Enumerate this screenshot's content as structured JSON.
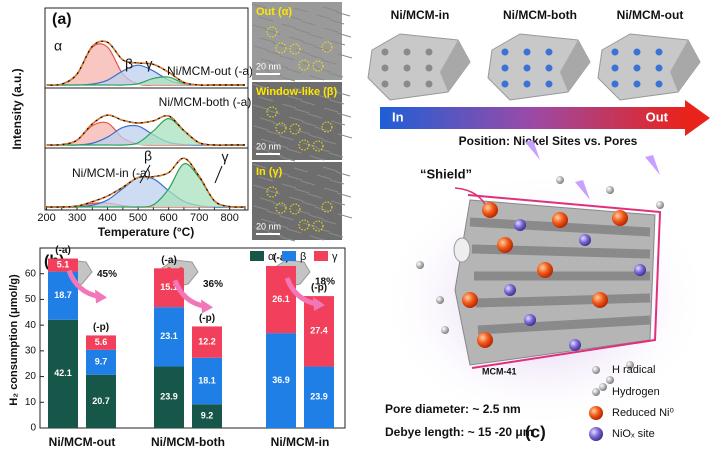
{
  "panel_a": {
    "label": "(a)",
    "type": "line",
    "x_label": "Temperature (°C)",
    "y_label": "Intensity (a.u.)",
    "xlim": [
      195,
      860
    ],
    "xticks": [
      200,
      250,
      300,
      350,
      400,
      450,
      500,
      550,
      600,
      650,
      700,
      750,
      800,
      850
    ],
    "ylim": [
      0,
      1.25
    ],
    "x": [
      200,
      250,
      300,
      350,
      400,
      450,
      500,
      550,
      600,
      650,
      700,
      750,
      800,
      850
    ],
    "traces": [
      {
        "label": "Ni/MCM-out (-a)",
        "annotations": [
          "α",
          "β",
          "γ"
        ],
        "total": [
          0,
          0.02,
          0.25,
          0.88,
          0.97,
          0.57,
          0.5,
          0.47,
          0.29,
          0.06,
          0,
          0,
          0,
          0
        ],
        "components": [
          {
            "color": "#e8534a",
            "values": [
              0,
              0.02,
              0.25,
              0.86,
              0.86,
              0.25,
              0.02,
              0,
              0,
              0,
              0,
              0,
              0,
              0
            ]
          },
          {
            "color": "#3b6fc9",
            "values": [
              0,
              0,
              0,
              0.02,
              0.11,
              0.32,
              0.45,
              0.32,
              0.11,
              0.02,
              0,
              0,
              0,
              0
            ]
          },
          {
            "color": "#2ba35c",
            "values": [
              0,
              0,
              0,
              0,
              0,
              0,
              0.03,
              0.15,
              0.18,
              0.04,
              0,
              0,
              0,
              0
            ]
          }
        ]
      },
      {
        "label": "Ni/MCM-both (-a)",
        "annotations": [],
        "total": [
          0,
          0.01,
          0.11,
          0.48,
          0.68,
          0.56,
          0.5,
          0.55,
          0.66,
          0.33,
          0.05,
          0,
          0,
          0
        ],
        "components": [
          {
            "color": "#e8534a",
            "values": [
              0,
              0.01,
              0.11,
              0.44,
              0.5,
              0.16,
              0.02,
              0,
              0,
              0,
              0,
              0,
              0,
              0
            ]
          },
          {
            "color": "#3b6fc9",
            "values": [
              0,
              0,
              0,
              0.04,
              0.18,
              0.4,
              0.43,
              0.23,
              0.06,
              0.01,
              0,
              0,
              0,
              0
            ]
          },
          {
            "color": "#2ba35c",
            "values": [
              0,
              0,
              0,
              0,
              0,
              0,
              0.05,
              0.32,
              0.6,
              0.32,
              0.05,
              0,
              0,
              0
            ]
          }
        ]
      },
      {
        "label": "Ni/MCM-in (-a)",
        "annotations": [
          "β",
          "γ"
        ],
        "total": [
          0,
          0,
          0.02,
          0.12,
          0.25,
          0.45,
          0.67,
          0.69,
          0.78,
          1.11,
          0.7,
          0.14,
          0.01,
          0
        ],
        "components": [
          {
            "color": "#e8534a",
            "values": [
              0,
              0,
              0.02,
              0.08,
              0.09,
              0.03,
              0,
              0,
              0,
              0,
              0,
              0,
              0,
              0
            ]
          },
          {
            "color": "#3b6fc9",
            "values": [
              0,
              0,
              0,
              0.04,
              0.16,
              0.42,
              0.67,
              0.64,
              0.37,
              0.13,
              0.03,
              0,
              0,
              0
            ]
          },
          {
            "color": "#2ba35c",
            "values": [
              0,
              0,
              0,
              0,
              0,
              0,
              0,
              0.05,
              0.41,
              0.98,
              0.67,
              0.14,
              0.01,
              0
            ]
          }
        ]
      }
    ]
  },
  "tem": [
    {
      "label": "Out (α)",
      "scale": "20 nm"
    },
    {
      "label": "Window-like (β)",
      "scale": "20 nm"
    },
    {
      "label": "In (γ)",
      "scale": "20 nm"
    }
  ],
  "top_right": {
    "titles": [
      "Ni/MCM-in",
      "Ni/MCM-both",
      "Ni/MCM-out"
    ],
    "arrow_start": "In",
    "arrow_end": "Out",
    "caption": "Position: Nickel Sites vs. Pores"
  },
  "panel_b": {
    "label": "(b)",
    "type": "bar",
    "y_label": "H₂ consumption (μmol/g)",
    "ylim": [
      0,
      70
    ],
    "yticks": [
      0,
      10,
      20,
      30,
      40,
      50,
      60
    ],
    "groups": [
      "Ni/MCM-out",
      "Ni/MCM-both",
      "Ni/MCM-in"
    ],
    "bars": [
      "(-a)",
      "(-p)",
      "(-a)",
      "(-p)",
      "(-a)",
      "(-p)"
    ],
    "series": [
      {
        "name": "α",
        "color": "#17574a",
        "values": [
          42.1,
          20.7,
          23.9,
          9.2,
          null,
          null
        ]
      },
      {
        "name": "β",
        "color": "#1f7fe6",
        "values": [
          18.7,
          9.7,
          23.1,
          18.1,
          36.9,
          23.9
        ]
      },
      {
        "name": "γ",
        "color": "#f2405c",
        "values": [
          5.1,
          5.6,
          15.1,
          12.2,
          26.1,
          27.4
        ]
      }
    ],
    "reduction": {
      "values": [
        45,
        36,
        18
      ],
      "value_labels": [
        "45%",
        "36%",
        "18%"
      ]
    }
  },
  "panel_c": {
    "label": "(c)",
    "shield": "“Shield”",
    "material": "MCM-41",
    "pore": "Pore diameter: ~ 2.5 nm",
    "debye": "Debye length: ~ 15 -20 μm",
    "legend": [
      "H radical",
      "Hydrogen",
      "Reduced Ni⁰",
      "NiOₓ site"
    ]
  }
}
